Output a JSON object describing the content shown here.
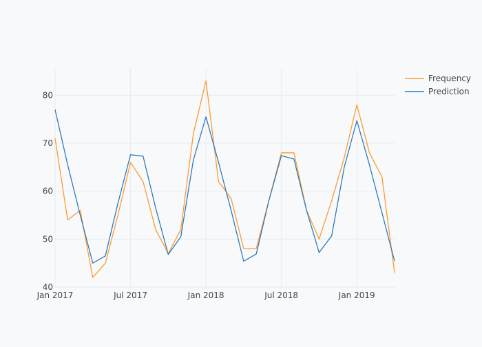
{
  "chart_data": {
    "type": "line",
    "x": [
      "2017-01",
      "2017-02",
      "2017-03",
      "2017-04",
      "2017-05",
      "2017-06",
      "2017-07",
      "2017-08",
      "2017-09",
      "2017-10",
      "2017-11",
      "2017-12",
      "2018-01",
      "2018-02",
      "2018-03",
      "2018-04",
      "2018-05",
      "2018-06",
      "2018-07",
      "2018-08",
      "2018-09",
      "2018-10",
      "2018-11",
      "2018-12",
      "2019-01",
      "2019-02",
      "2019-03",
      "2019-04"
    ],
    "series": [
      {
        "name": "Frequency",
        "color": "#ff9a2e",
        "values": [
          71,
          54,
          56,
          42,
          45,
          55,
          66,
          62,
          52,
          47,
          52,
          72,
          83,
          62,
          58.5,
          48,
          48,
          58,
          68,
          68,
          56,
          50,
          58,
          67,
          78,
          68,
          63,
          43
        ]
      },
      {
        "name": "Prediction",
        "color": "#2f7ab8",
        "values": [
          77,
          65.5,
          55,
          45,
          46.5,
          57.5,
          67.6,
          67.3,
          56.5,
          46.8,
          50.5,
          66.5,
          75.5,
          66,
          56,
          45.4,
          46.9,
          58,
          67.4,
          66.7,
          56,
          47.2,
          50.7,
          65,
          74.7,
          65.5,
          55.5,
          45.4
        ]
      }
    ],
    "x_ticks": [
      {
        "date": "2017-01",
        "label": "Jan 2017"
      },
      {
        "date": "2017-07",
        "label": "Jul 2017"
      },
      {
        "date": "2018-01",
        "label": "Jan 2018"
      },
      {
        "date": "2018-07",
        "label": "Jul 2018"
      },
      {
        "date": "2019-01",
        "label": "Jan 2019"
      }
    ],
    "y_ticks": [
      40,
      50,
      60,
      70,
      80
    ],
    "ylim": [
      40,
      85.5
    ],
    "xlim": [
      "2017-01",
      "2019-04"
    ],
    "grid": true,
    "legend_position": "top-right",
    "title": "",
    "xlabel": "",
    "ylabel": ""
  }
}
